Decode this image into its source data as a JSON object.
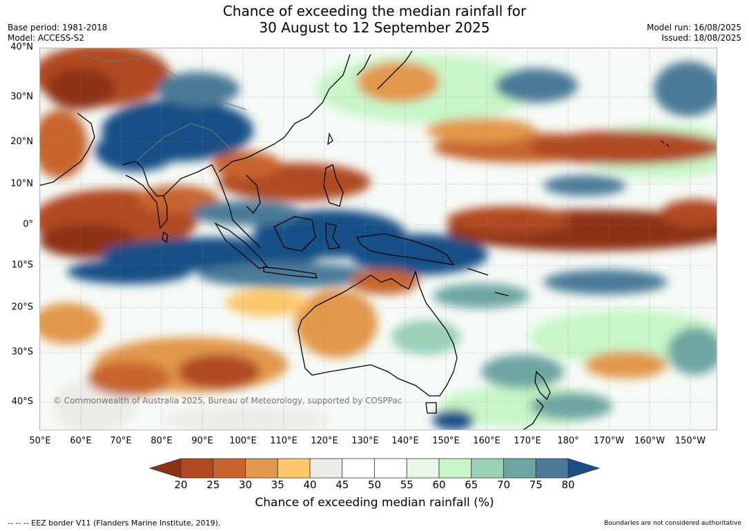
{
  "title_line1": "Chance of exceeding the median rainfall for",
  "title_line2": "30 August to 12 September 2025",
  "base_period": "Base period: 1981-2018",
  "model": "Model: ACCESS-S2",
  "model_run": "Model run: 16/08/2025",
  "issued": "Issued: 18/08/2025",
  "copyright": "© Commonwealth of Australia 2025, Bureau of Meteorology, supported by COSPPac",
  "lat_labels": [
    "40°N",
    "30°N",
    "20°N",
    "10°N",
    "0°",
    "10°S",
    "20°S",
    "30°S",
    "40°S"
  ],
  "lon_labels": [
    "50°E",
    "60°E",
    "70°E",
    "80°E",
    "90°E",
    "100°E",
    "110°E",
    "120°E",
    "130°E",
    "140°E",
    "150°E",
    "160°E",
    "170°E",
    "180°",
    "170°W",
    "160°W",
    "150°W"
  ],
  "colorbar": {
    "title": "Chance of exceeding median rainfall (%)",
    "ticks": [
      "20",
      "25",
      "30",
      "35",
      "40",
      "45",
      "50",
      "55",
      "60",
      "65",
      "70",
      "75",
      "80"
    ],
    "colors": [
      "#8e3216",
      "#b04a23",
      "#c8652e",
      "#e2984b",
      "#fdc86a",
      "#ecebe7",
      "#ffffff",
      "#ffffff",
      "#e9f6ea",
      "#c8f6c8",
      "#99d0b6",
      "#6ea6a3",
      "#4a7a98",
      "#194f86"
    ]
  },
  "footer_left": "--  --  -- EEZ border V11 (Flanders Marine Institute, 2019).",
  "footer_right": "Boundaries are not considered authoritative"
}
